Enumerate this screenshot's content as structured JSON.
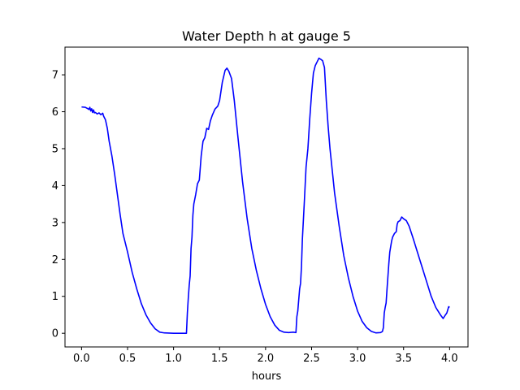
{
  "chart_data": {
    "type": "line",
    "title": "Water Depth h at gauge 5",
    "xlabel": "hours",
    "ylabel": "",
    "xlim": [
      -0.18,
      4.2
    ],
    "ylim": [
      -0.37,
      7.75
    ],
    "xticks": [
      0.0,
      0.5,
      1.0,
      1.5,
      2.0,
      2.5,
      3.0,
      3.5,
      4.0
    ],
    "xtick_labels": [
      "0.0",
      "0.5",
      "1.0",
      "1.5",
      "2.0",
      "2.5",
      "3.0",
      "3.5",
      "4.0"
    ],
    "yticks": [
      0,
      1,
      2,
      3,
      4,
      5,
      6,
      7
    ],
    "ytick_labels": [
      "0",
      "1",
      "2",
      "3",
      "4",
      "5",
      "6",
      "7"
    ],
    "grid": false,
    "series": [
      {
        "color": "#0000ff",
        "x": [
          0.0,
          0.04,
          0.07,
          0.08,
          0.09,
          0.1,
          0.11,
          0.12,
          0.13,
          0.14,
          0.15,
          0.17,
          0.19,
          0.21,
          0.23,
          0.24,
          0.26,
          0.28,
          0.3,
          0.33,
          0.36,
          0.39,
          0.42,
          0.45,
          0.5,
          0.55,
          0.6,
          0.65,
          0.7,
          0.75,
          0.8,
          0.85,
          0.9,
          1.0,
          1.1,
          1.14,
          1.15,
          1.16,
          1.17,
          1.18,
          1.19,
          1.2,
          1.21,
          1.22,
          1.24,
          1.26,
          1.28,
          1.3,
          1.32,
          1.34,
          1.36,
          1.38,
          1.4,
          1.42,
          1.45,
          1.48,
          1.5,
          1.53,
          1.56,
          1.58,
          1.6,
          1.63,
          1.66,
          1.7,
          1.75,
          1.8,
          1.85,
          1.9,
          1.95,
          2.0,
          2.05,
          2.1,
          2.15,
          2.2,
          2.25,
          2.3,
          2.33,
          2.34,
          2.35,
          2.36,
          2.37,
          2.38,
          2.39,
          2.4,
          2.42,
          2.44,
          2.46,
          2.48,
          2.5,
          2.52,
          2.53,
          2.54,
          2.56,
          2.58,
          2.6,
          2.62,
          2.64,
          2.66,
          2.68,
          2.7,
          2.75,
          2.8,
          2.85,
          2.9,
          2.95,
          3.0,
          3.05,
          3.1,
          3.15,
          3.2,
          3.25,
          3.27,
          3.28,
          3.29,
          3.3,
          3.31,
          3.32,
          3.33,
          3.34,
          3.35,
          3.36,
          3.37,
          3.38,
          3.4,
          3.42,
          3.43,
          3.44,
          3.46,
          3.48,
          3.5,
          3.53,
          3.56,
          3.6,
          3.65,
          3.7,
          3.75,
          3.8,
          3.85,
          3.9,
          3.93,
          3.95,
          3.97,
          3.99,
          4.0
        ],
        "y": [
          6.13,
          6.12,
          6.08,
          6.06,
          6.12,
          6.02,
          6.08,
          5.98,
          6.05,
          5.97,
          5.98,
          5.94,
          5.97,
          5.92,
          5.96,
          5.88,
          5.78,
          5.55,
          5.2,
          4.8,
          4.3,
          3.75,
          3.2,
          2.7,
          2.2,
          1.65,
          1.2,
          0.8,
          0.5,
          0.28,
          0.12,
          0.03,
          0.01,
          0.0,
          0.0,
          0.0,
          0.55,
          0.95,
          1.3,
          1.55,
          2.3,
          2.6,
          3.2,
          3.5,
          3.75,
          4.05,
          4.15,
          4.8,
          5.2,
          5.3,
          5.55,
          5.52,
          5.75,
          5.9,
          6.07,
          6.15,
          6.3,
          6.8,
          7.12,
          7.18,
          7.1,
          6.9,
          6.3,
          5.3,
          4.1,
          3.1,
          2.3,
          1.7,
          1.2,
          0.78,
          0.45,
          0.22,
          0.08,
          0.03,
          0.02,
          0.03,
          0.02,
          0.45,
          0.6,
          0.9,
          1.2,
          1.35,
          1.8,
          2.55,
          3.5,
          4.5,
          5.0,
          5.8,
          6.5,
          7.05,
          7.15,
          7.25,
          7.35,
          7.45,
          7.42,
          7.38,
          7.2,
          6.3,
          5.6,
          5.0,
          3.8,
          2.9,
          2.1,
          1.5,
          1.0,
          0.6,
          0.32,
          0.15,
          0.05,
          0.01,
          0.02,
          0.05,
          0.15,
          0.55,
          0.7,
          0.82,
          1.2,
          1.55,
          1.9,
          2.2,
          2.35,
          2.5,
          2.6,
          2.7,
          2.75,
          2.95,
          3.02,
          3.05,
          3.15,
          3.1,
          3.05,
          2.9,
          2.6,
          2.2,
          1.8,
          1.4,
          1.0,
          0.7,
          0.5,
          0.4,
          0.48,
          0.55,
          0.72,
          0.7
        ]
      }
    ]
  }
}
